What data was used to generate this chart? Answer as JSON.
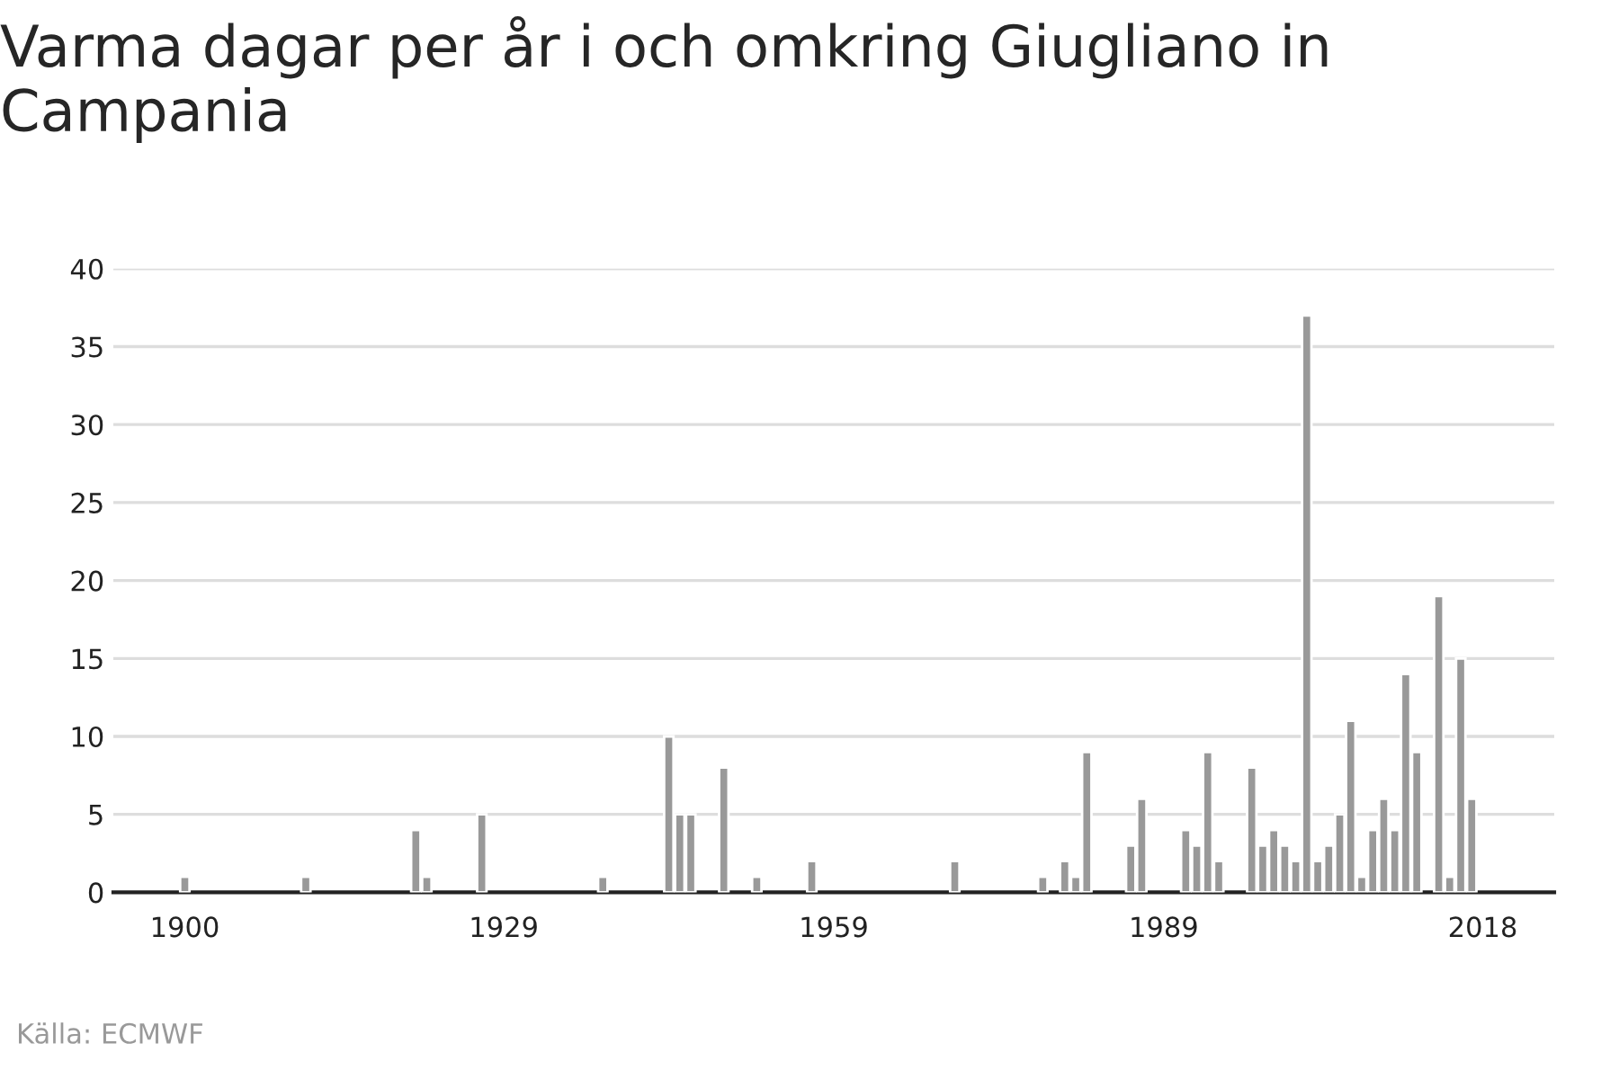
{
  "chart_data": {
    "type": "bar",
    "title": "Varma dagar per år i och omkring Giugliano in Campania",
    "x": [
      1900,
      1911,
      1921,
      1922,
      1927,
      1938,
      1944,
      1945,
      1946,
      1949,
      1952,
      1957,
      1970,
      1978,
      1980,
      1981,
      1982,
      1986,
      1987,
      1991,
      1992,
      1993,
      1994,
      1997,
      1998,
      1999,
      2000,
      2001,
      2002,
      2003,
      2004,
      2005,
      2006,
      2007,
      2008,
      2009,
      2010,
      2011,
      2012,
      2014,
      2015,
      2016,
      2017
    ],
    "values": [
      1,
      1,
      4,
      1,
      5,
      1,
      10,
      5,
      5,
      8,
      1,
      2,
      2,
      1,
      2,
      1,
      9,
      3,
      6,
      4,
      3,
      9,
      2,
      8,
      3,
      4,
      3,
      2,
      37,
      2,
      3,
      5,
      11,
      1,
      4,
      6,
      4,
      14,
      9,
      19,
      1,
      15,
      6
    ],
    "color": "#999999",
    "xlim": [
      1893.5,
      2024.5
    ],
    "xticks": [
      1900,
      1929,
      1959,
      1989,
      2018
    ],
    "ylim": [
      0,
      40
    ],
    "yticks": [
      0,
      5,
      10,
      15,
      20,
      25,
      30,
      35,
      40
    ],
    "grid": "y",
    "annotations": [
      "Källa: ECMWF"
    ]
  }
}
